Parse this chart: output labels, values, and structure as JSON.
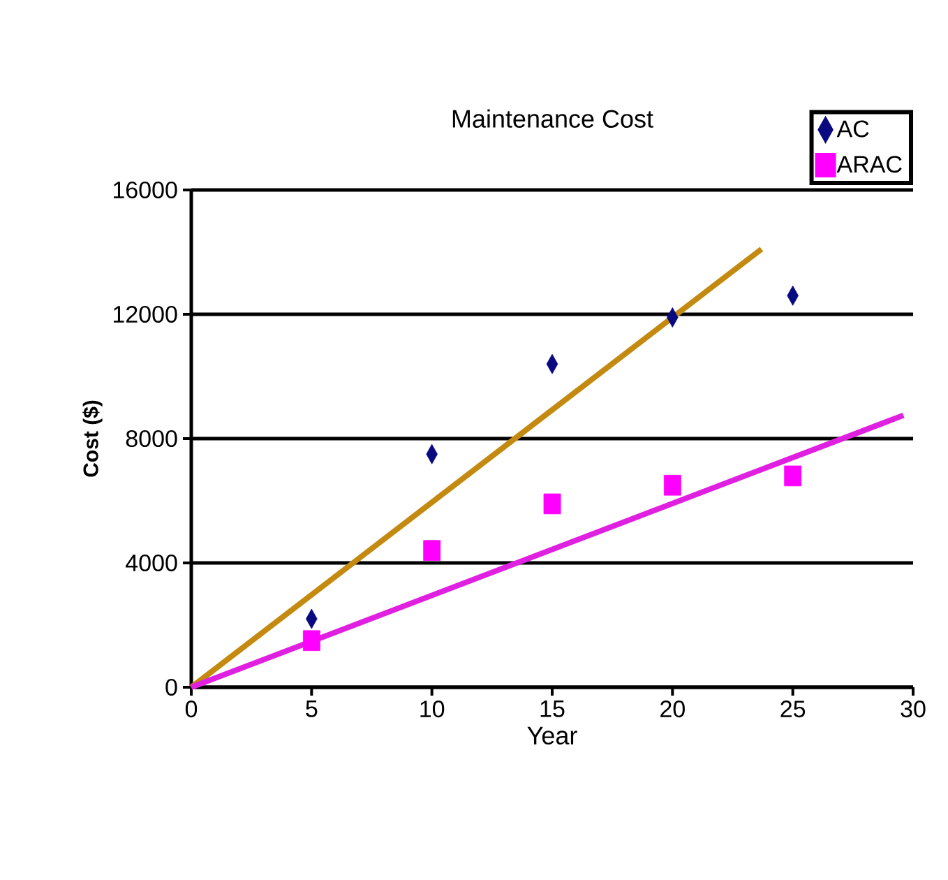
{
  "chart_data": {
    "type": "scatter",
    "title": "Maintenance Cost",
    "xlabel": "Year",
    "ylabel": "Cost ($)",
    "xlim": [
      0,
      30
    ],
    "xticks": [
      0,
      5,
      10,
      15,
      20,
      25,
      30
    ],
    "ylim": [
      0,
      16000
    ],
    "yticks": [
      0,
      4000,
      8000,
      12000,
      16000
    ],
    "grid": "y",
    "legend": "top right",
    "series": [
      {
        "name": "AC",
        "color": "#0a0a80",
        "marker": "diamond",
        "x": [
          5,
          10,
          15,
          20,
          25
        ],
        "values": [
          2200,
          7500,
          10400,
          11900,
          12600
        ]
      },
      {
        "name": "ARAC",
        "color": "#ff00ff",
        "marker": "square",
        "x": [
          5,
          10,
          15,
          20,
          25
        ],
        "values": [
          1500,
          4400,
          5900,
          6500,
          6800
        ]
      },
      {
        "type": "line",
        "color": "#c48a10",
        "marker": "none",
        "line_style": "solid",
        "x": [
          0,
          23.7
        ],
        "values": [
          0,
          14100
        ]
      },
      {
        "type": "line",
        "color": "#e020e0",
        "marker": "none",
        "line_style": "solid",
        "x": [
          0,
          29.6
        ],
        "values": [
          0,
          8750
        ]
      }
    ]
  }
}
